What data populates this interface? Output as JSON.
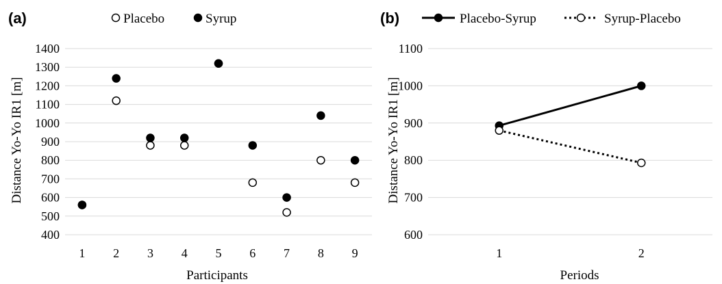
{
  "chart_data": [
    {
      "panel_label": "(a)",
      "type": "scatter",
      "xlabel": "Participants",
      "ylabel": "Distance Yo-Yo IR1 [m]",
      "x": [
        1,
        2,
        3,
        4,
        5,
        6,
        7,
        8,
        9
      ],
      "xticks": [
        "1",
        "2",
        "3",
        "4",
        "5",
        "6",
        "7",
        "8",
        "9"
      ],
      "ylim": [
        400,
        1400
      ],
      "yticks": [
        "400",
        "500",
        "600",
        "700",
        "800",
        "900",
        "1000",
        "1100",
        "1200",
        "1300",
        "1400"
      ],
      "grid": true,
      "legend_position": "top",
      "series": [
        {
          "name": "Placebo",
          "marker": "open-circle",
          "values": [
            560,
            1120,
            880,
            880,
            1320,
            680,
            520,
            800,
            680
          ]
        },
        {
          "name": "Syrup",
          "marker": "filled-circle",
          "values": [
            560,
            1240,
            920,
            920,
            1320,
            880,
            600,
            1040,
            800
          ]
        }
      ]
    },
    {
      "panel_label": "(b)",
      "type": "line",
      "xlabel": "Periods",
      "ylabel": "Distance Yo-Yo IR1 [m]",
      "x": [
        1,
        2
      ],
      "xticks": [
        "1",
        "2"
      ],
      "ylim": [
        600,
        1100
      ],
      "yticks": [
        "600",
        "700",
        "800",
        "900",
        "1000",
        "1100"
      ],
      "grid": true,
      "legend_position": "top",
      "series": [
        {
          "name": "Placebo-Syrup",
          "style": "solid",
          "marker": "filled-circle",
          "values": [
            893,
            1000
          ]
        },
        {
          "name": "Syrup-Placebo",
          "style": "dotted",
          "marker": "open-circle",
          "values": [
            880,
            793
          ]
        }
      ]
    }
  ]
}
